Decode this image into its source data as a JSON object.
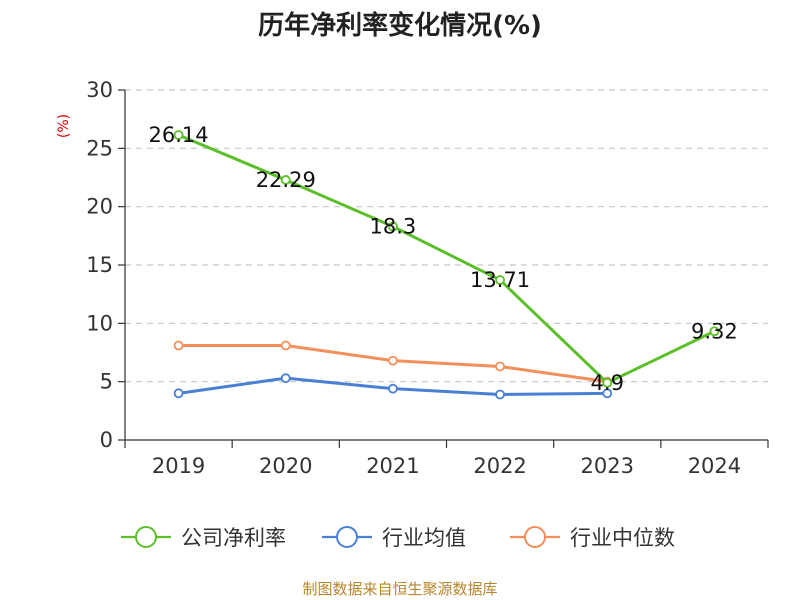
{
  "chart_data": {
    "type": "line",
    "title": "历年净利率变化情况(%)",
    "ylabel": "(%)",
    "categories": [
      "2019",
      "2020",
      "2021",
      "2022",
      "2023",
      "2024"
    ],
    "ylim": [
      0,
      30
    ],
    "yticks": [
      "0",
      "5",
      "10",
      "15",
      "20",
      "25",
      "30"
    ],
    "grid": true,
    "legend_position": "bottom",
    "series": [
      {
        "name": "公司净利率",
        "color": "#5cbf2a",
        "values": [
          26.14,
          22.29,
          18.3,
          13.71,
          4.9,
          9.32
        ],
        "labels": [
          "26.14",
          "22.29",
          "18.3",
          "13.71",
          "4.9",
          "9.32"
        ]
      },
      {
        "name": "行业均值",
        "color": "#4a7fd4",
        "values": [
          4.0,
          5.3,
          4.4,
          3.9,
          4.0,
          null
        ]
      },
      {
        "name": "行业中位数",
        "color": "#f28f5a",
        "values": [
          8.1,
          8.1,
          6.8,
          6.3,
          5.0,
          null
        ]
      }
    ]
  },
  "source_text": "制图数据来自恒生聚源数据库"
}
